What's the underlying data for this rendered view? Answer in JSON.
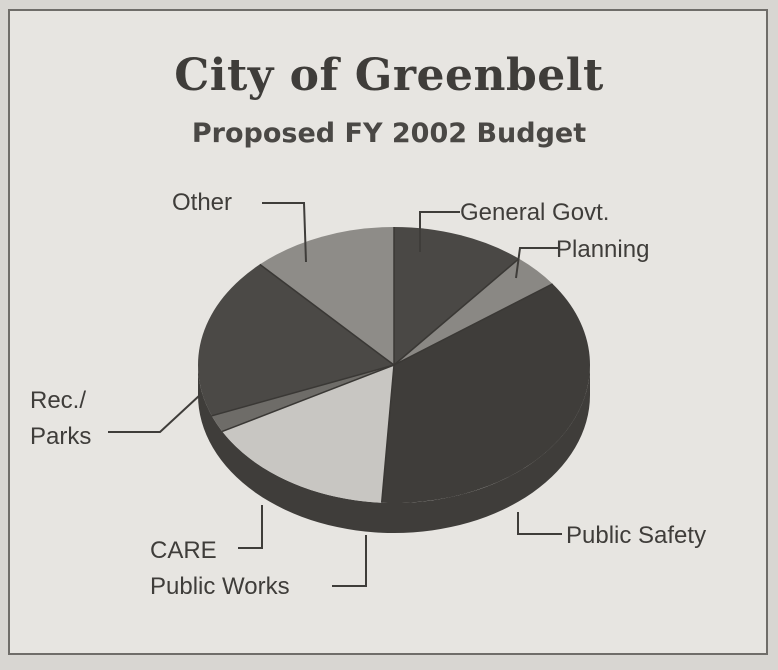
{
  "chart_data": {
    "type": "pie",
    "title": "City of Greenbelt",
    "subtitle": "Proposed FY 2002 Budget",
    "categories": [
      "General Govt.",
      "Planning",
      "Public Safety",
      "Public Works",
      "CARE",
      "Rec./ Parks",
      "Other"
    ],
    "values": [
      11,
      4,
      36,
      16,
      2,
      19,
      12
    ],
    "value_unit": "approx. percent of budget (estimated)",
    "colors": [
      "#4a4845",
      "#8a8884",
      "#3f3d3a",
      "#c8c6c2",
      "#6e6c68",
      "#4b4946",
      "#8e8c88"
    ],
    "style": "3d-tilted",
    "labels": {
      "general_govt": "General Govt.",
      "planning": "Planning",
      "public_safety": "Public Safety",
      "public_works": "Public Works",
      "care": "CARE",
      "rec_line1": "Rec./",
      "rec_line2": "Parks",
      "other": "Other"
    }
  }
}
